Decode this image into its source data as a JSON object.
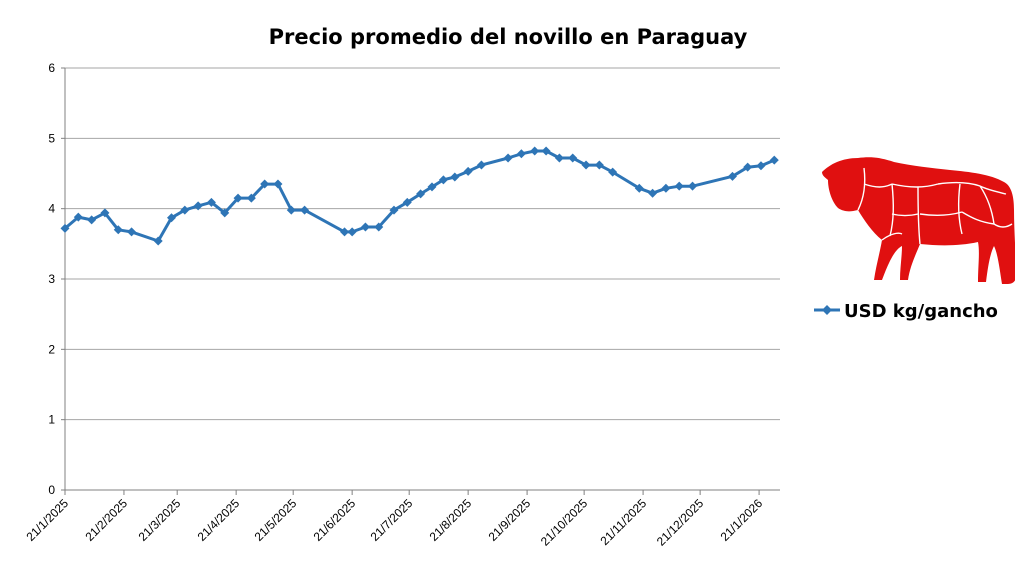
{
  "chart_data": {
    "type": "line",
    "title": "Precio promedio del novillo en Paraguay",
    "xlabel": "",
    "ylabel": "",
    "ylim": [
      0,
      6
    ],
    "yticks": [
      "0",
      "1",
      "2",
      "3",
      "4",
      "5",
      "6"
    ],
    "xlim": [
      "2025-01-21",
      "2026-02-01"
    ],
    "xticks": [
      "21/1/2025",
      "21/2/2025",
      "21/3/2025",
      "21/4/2025",
      "21/5/2025",
      "21/6/2025",
      "21/7/2025",
      "21/8/2025",
      "21/9/2025",
      "21/10/2025",
      "21/11/2025",
      "21/12/2025",
      "21/1/2026"
    ],
    "grid": "horizontal",
    "legend_position": "right",
    "series": [
      {
        "name": "USD kg/gancho",
        "color": "#2E75B6",
        "marker": "diamond",
        "points": [
          [
            "2025-01-21",
            3.72
          ],
          [
            "2025-01-28",
            3.88
          ],
          [
            "2025-02-04",
            3.84
          ],
          [
            "2025-02-11",
            3.94
          ],
          [
            "2025-02-18",
            3.7
          ],
          [
            "2025-02-25",
            3.67
          ],
          [
            "2025-03-11",
            3.54
          ],
          [
            "2025-03-18",
            3.87
          ],
          [
            "2025-03-25",
            3.98
          ],
          [
            "2025-04-01",
            4.04
          ],
          [
            "2025-04-08",
            4.09
          ],
          [
            "2025-04-15",
            3.94
          ],
          [
            "2025-04-22",
            4.15
          ],
          [
            "2025-04-29",
            4.15
          ],
          [
            "2025-05-06",
            4.35
          ],
          [
            "2025-05-13",
            4.35
          ],
          [
            "2025-05-20",
            3.98
          ],
          [
            "2025-05-27",
            3.98
          ],
          [
            "2025-06-17",
            3.67
          ],
          [
            "2025-06-21",
            3.67
          ],
          [
            "2025-06-28",
            3.74
          ],
          [
            "2025-07-05",
            3.74
          ],
          [
            "2025-07-13",
            3.98
          ],
          [
            "2025-07-20",
            4.09
          ],
          [
            "2025-07-27",
            4.21
          ],
          [
            "2025-08-02",
            4.31
          ],
          [
            "2025-08-08",
            4.41
          ],
          [
            "2025-08-14",
            4.45
          ],
          [
            "2025-08-21",
            4.53
          ],
          [
            "2025-08-28",
            4.62
          ],
          [
            "2025-09-11",
            4.72
          ],
          [
            "2025-09-18",
            4.78
          ],
          [
            "2025-09-25",
            4.82
          ],
          [
            "2025-10-01",
            4.82
          ],
          [
            "2025-10-08",
            4.72
          ],
          [
            "2025-10-15",
            4.72
          ],
          [
            "2025-10-22",
            4.62
          ],
          [
            "2025-10-29",
            4.62
          ],
          [
            "2025-11-05",
            4.52
          ],
          [
            "2025-11-19",
            4.29
          ],
          [
            "2025-11-26",
            4.22
          ],
          [
            "2025-12-03",
            4.29
          ],
          [
            "2025-12-10",
            4.32
          ],
          [
            "2025-12-17",
            4.32
          ],
          [
            "2026-01-07",
            4.46
          ],
          [
            "2026-01-15",
            4.59
          ],
          [
            "2026-01-22",
            4.61
          ],
          [
            "2026-01-29",
            4.69
          ]
        ]
      }
    ]
  },
  "decoration": {
    "bull_icon": "bull-icon",
    "bull_color": "#E01010"
  }
}
